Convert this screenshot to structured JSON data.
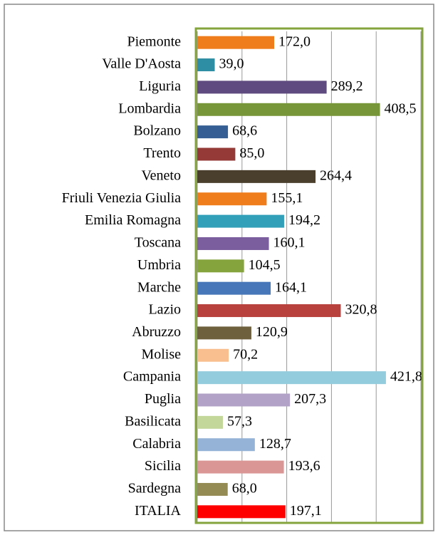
{
  "chart_data": {
    "type": "barh",
    "categories": [
      "Piemonte",
      "Valle D'Aosta",
      "Liguria",
      "Lombardia",
      "Bolzano",
      "Trento",
      "Veneto",
      "Friuli Venezia Giulia",
      "Emilia Romagna",
      "Toscana",
      "Umbria",
      "Marche",
      "Lazio",
      "Abruzzo",
      "Molise",
      "Campania",
      "Puglia",
      "Basilicata",
      "Calabria",
      "Sicilia",
      "Sardegna",
      "ITALIA"
    ],
    "values": [
      172.0,
      39.0,
      289.2,
      408.5,
      68.6,
      85.0,
      264.4,
      155.1,
      194.2,
      160.1,
      104.5,
      164.1,
      320.8,
      120.9,
      70.2,
      421.8,
      207.3,
      57.3,
      128.7,
      193.6,
      68.0,
      197.1
    ],
    "value_labels": [
      "172,0",
      "39,0",
      "289,2",
      "408,5",
      "68,6",
      "85,0",
      "264,4",
      "155,1",
      "194,2",
      "160,1",
      "104,5",
      "164,1",
      "320,8",
      "120,9",
      "70,2",
      "421,8",
      "207,3",
      "57,3",
      "128,7",
      "193,6",
      "68,0",
      "197,1"
    ],
    "colors": [
      "#f07d1c",
      "#2e8ea3",
      "#5f4b7f",
      "#77963a",
      "#355f94",
      "#963a38",
      "#4a3f2c",
      "#f07d1c",
      "#33a0ba",
      "#7a5e9d",
      "#86a43e",
      "#4777b8",
      "#b8413e",
      "#6e5f3d",
      "#f9bf8f",
      "#93cddd",
      "#b2a2c7",
      "#c4d79b",
      "#95b3d7",
      "#d99694",
      "#948a54",
      "#ff0000"
    ],
    "xlim": [
      0,
      500
    ],
    "xticks": [
      0,
      100,
      200,
      300,
      400,
      500
    ],
    "grid": true
  }
}
